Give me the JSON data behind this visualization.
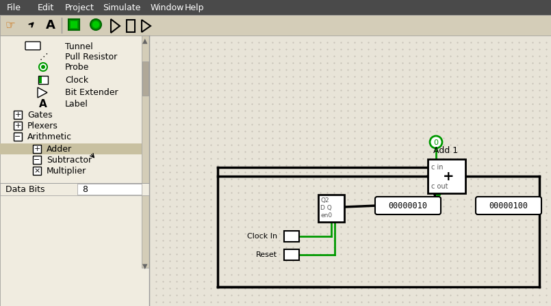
{
  "bg_color": "#d4cdb8",
  "canvas_bg": "#e8e4d8",
  "dot_color": "#b0a898",
  "menu_bar_color": "#4a4a4a",
  "menu_items": [
    "File",
    "Edit",
    "Project",
    "Simulate",
    "Window",
    "Help"
  ],
  "toolbar_bg": "#d4cdb8",
  "sidebar_bg": "#f0ece0",
  "sidebar_items": [
    "Tunnel",
    "Pull Resistor",
    "Probe",
    "Clock",
    "Bit Extender",
    "Label"
  ],
  "sidebar_groups": [
    "Gates",
    "Plexers",
    "Arithmetic"
  ],
  "selected_item": "Adder",
  "arithmetic_items": [
    "Adder",
    "Subtractor",
    "Multiplier"
  ],
  "data_bits_label": "Data Bits",
  "data_bits_value": "8",
  "circuit_bg": "#e8e4d8",
  "wire_color_black": "#000000",
  "wire_color_green": "#009900",
  "component_border": "#000000",
  "adder_label": "Add 1",
  "display_left": "00000010",
  "display_right": "00000100",
  "clock_in_label": "Clock In",
  "reset_label": "Reset"
}
